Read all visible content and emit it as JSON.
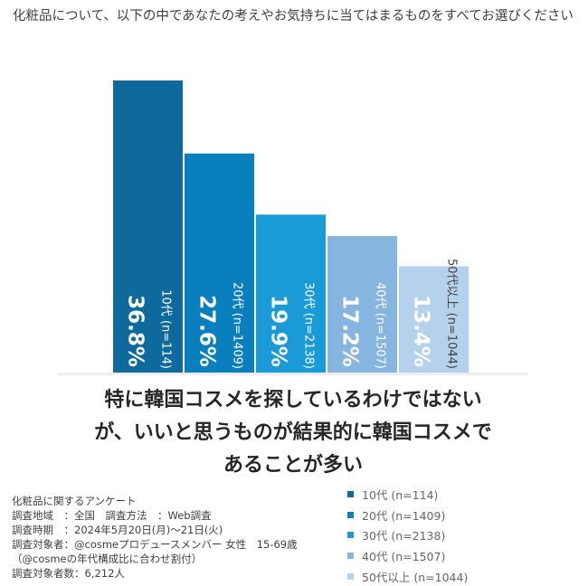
{
  "question": "化粧品について、以下の中であなたの考えやお気持ちに当てはまるものをすべてお選びください",
  "headline": [
    "特に韓国コスメを探しているわけではない",
    "が、いいと思うものが結果的に韓国コスメで",
    "あることが多い"
  ],
  "survey_info": [
    "化粧品に関するアンケート",
    "調査地域　：全国　調査方法　：Web調査",
    "調査時期　：2024年5月20日(月)～21日(火)",
    "調査対象者：@cosmeプロデュースメンバー 女性　15-69歳",
    "（@cosmeの年代構成比に合わせ割付）",
    "調査対象者数：6,212人"
  ],
  "legend": [
    {
      "label": "10代 (n=114)",
      "color": "#0e6a9c"
    },
    {
      "label": "20代 (n=1409)",
      "color": "#0a7fbd"
    },
    {
      "label": "30代 (n=2138)",
      "color": "#1a9bd8"
    },
    {
      "label": "40代 (n=1507)",
      "color": "#86b6e0"
    },
    {
      "label": "50代以上 (n=1044)",
      "color": "#b6d1ec"
    }
  ],
  "chart_data": {
    "type": "bar",
    "categories": [
      "10代 (n=114)",
      "20代 (n=1409)",
      "30代 (n=2138)",
      "40代 (n=1507)",
      "50代以上 (n=1044)"
    ],
    "values": [
      36.8,
      27.6,
      19.9,
      17.2,
      13.4
    ],
    "value_labels": [
      "36.8%",
      "27.6%",
      "19.9%",
      "17.2%",
      "13.4%"
    ],
    "unit": "%",
    "colors": [
      "#0e6a9c",
      "#0a7fbd",
      "#1a9bd8",
      "#86b6e0",
      "#b6d1ec"
    ],
    "ylim": [
      0,
      36.8
    ],
    "grid": false,
    "legend_position": "bottom-right"
  }
}
